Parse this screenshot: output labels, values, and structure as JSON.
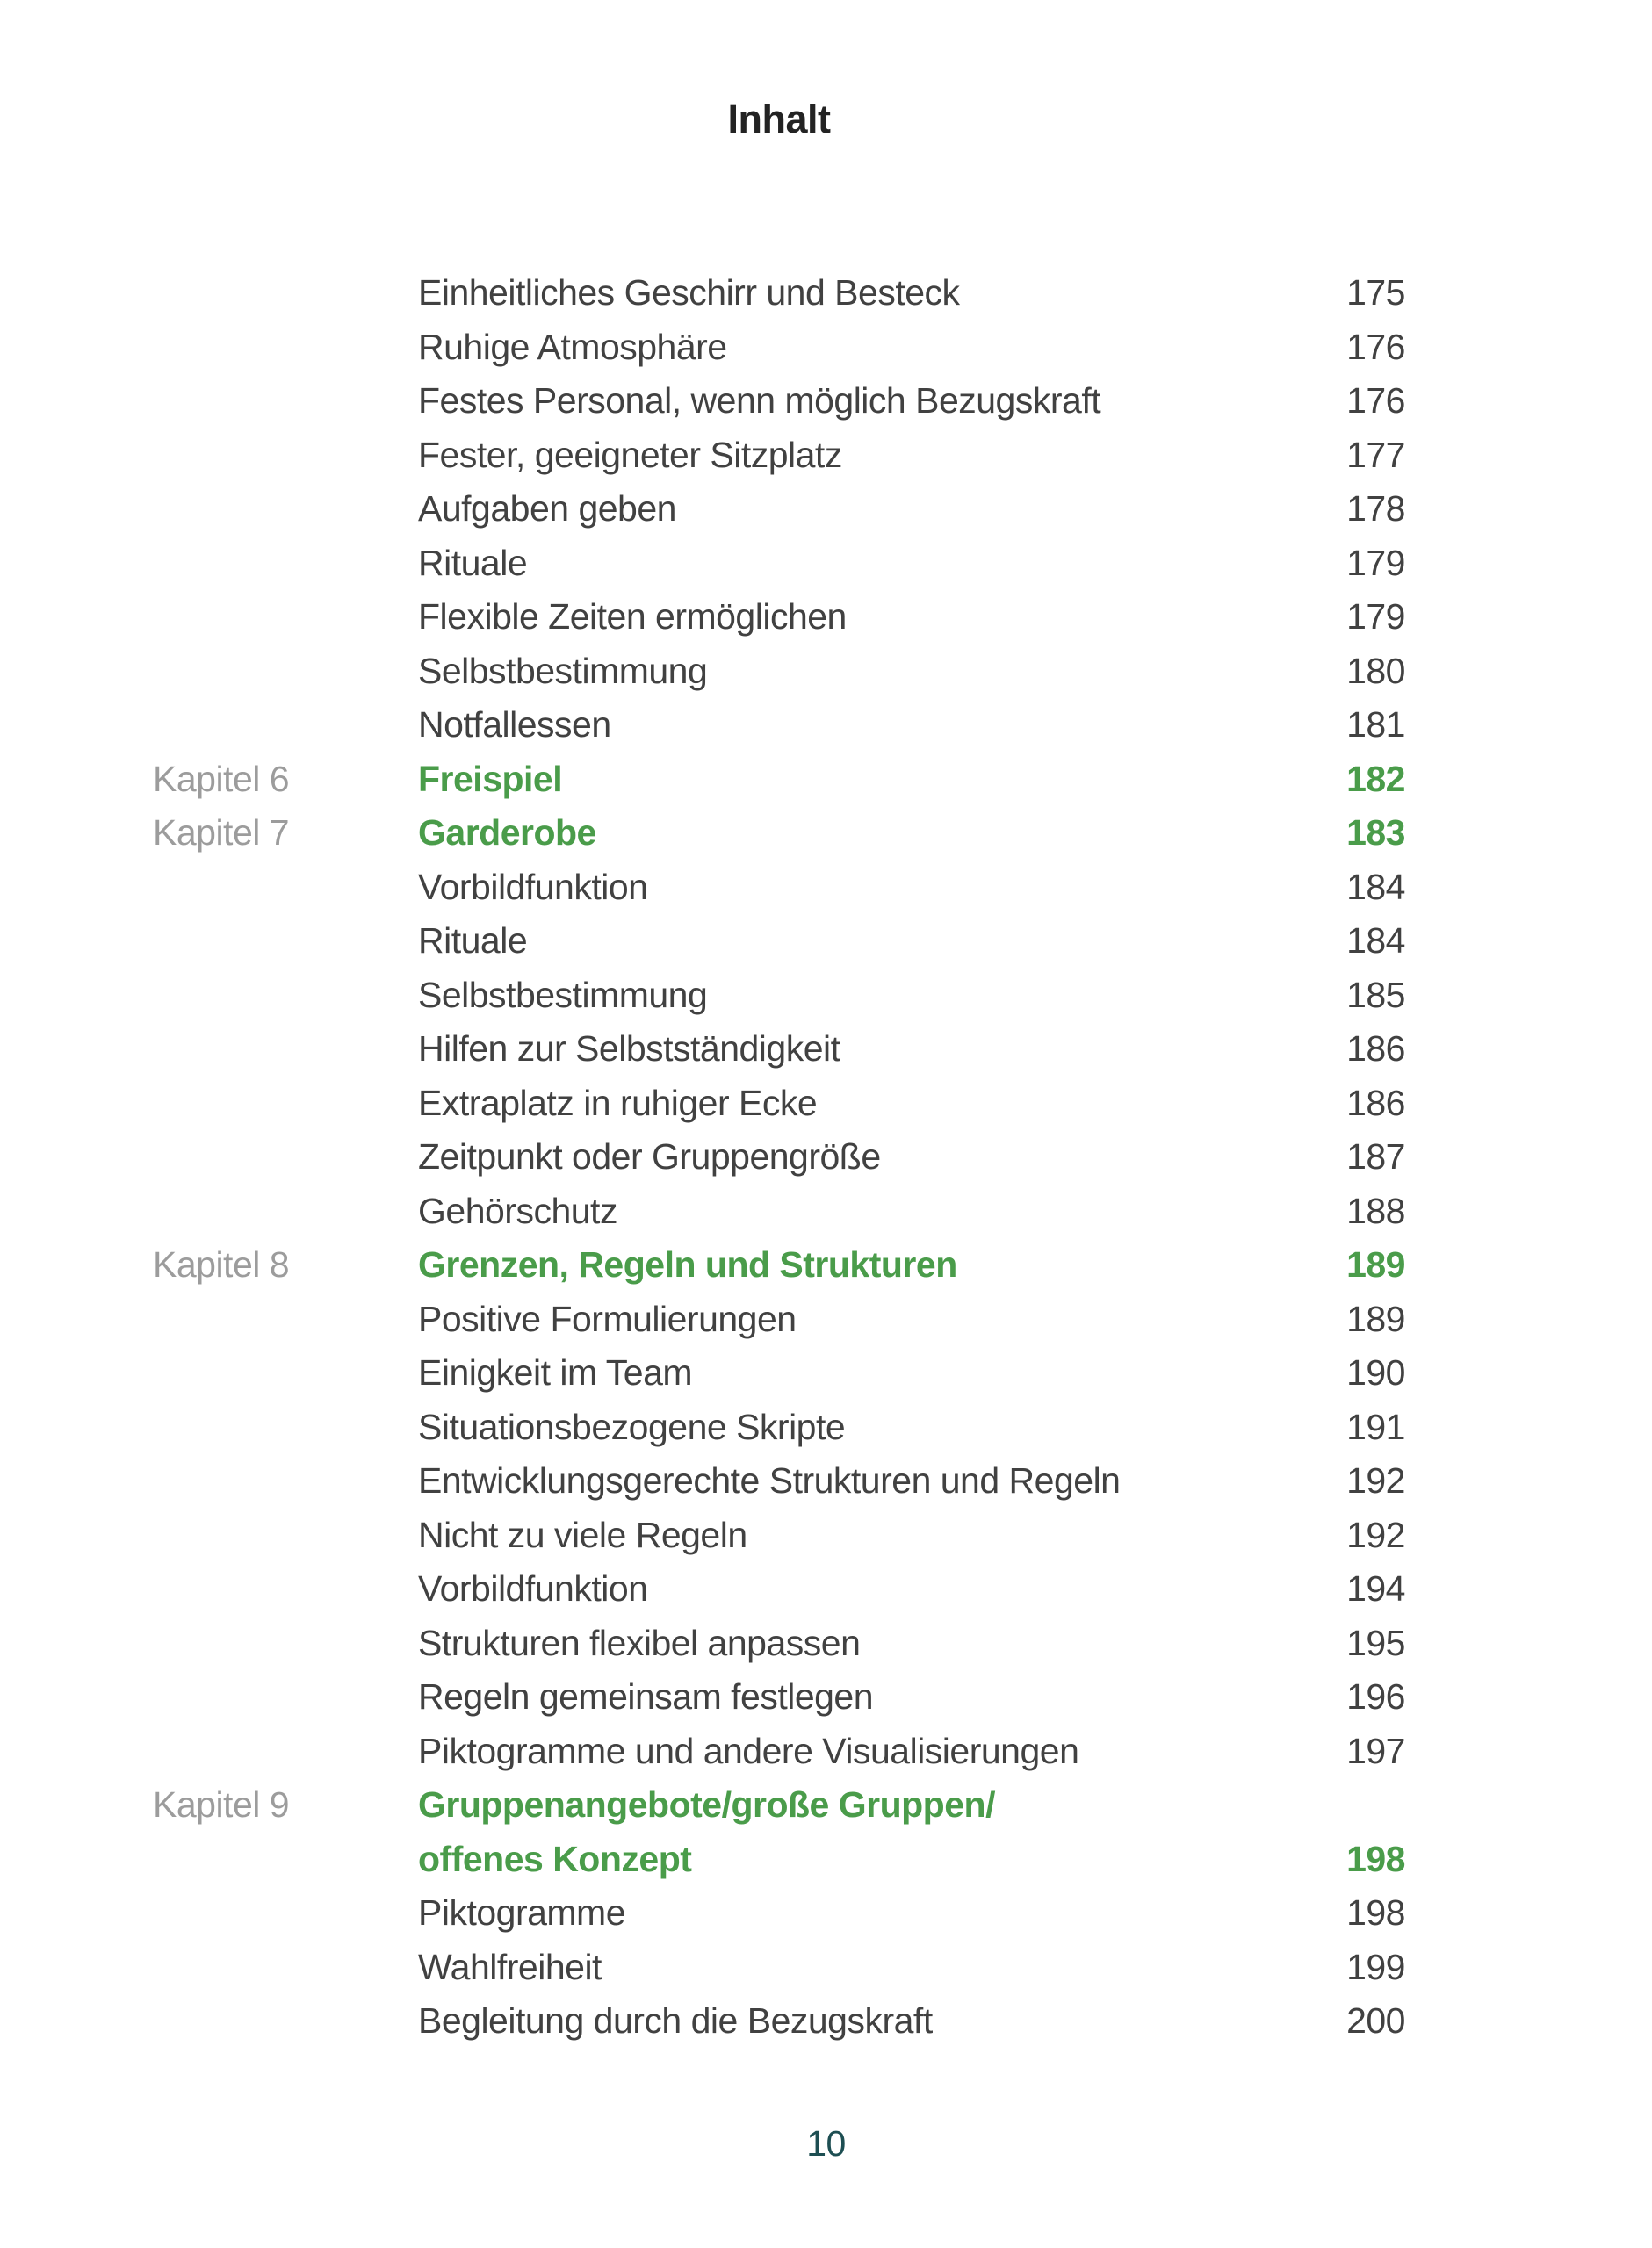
{
  "page": {
    "title": "Inhalt",
    "page_number": "10",
    "colors": {
      "accent_green": "#4a9c4a",
      "body_text": "#414141",
      "chapter_label_gray": "#9c9c9c",
      "heading_text": "#232323",
      "folio_teal": "#1d4e52"
    }
  },
  "toc": {
    "rows": [
      {
        "label": "",
        "text": "Einheitliches Geschirr und Besteck",
        "page": "175",
        "style": "item"
      },
      {
        "label": "",
        "text": "Ruhige Atmosphäre",
        "page": "176",
        "style": "item"
      },
      {
        "label": "",
        "text": "Festes Personal, wenn möglich Bezugskraft",
        "page": "176",
        "style": "item"
      },
      {
        "label": "",
        "text": "Fester, geeigneter Sitzplatz",
        "page": "177",
        "style": "item"
      },
      {
        "label": "",
        "text": "Aufgaben geben",
        "page": "178",
        "style": "item"
      },
      {
        "label": "",
        "text": "Rituale",
        "page": "179",
        "style": "item"
      },
      {
        "label": "",
        "text": "Flexible Zeiten ermöglichen",
        "page": "179",
        "style": "item"
      },
      {
        "label": "",
        "text": "Selbstbestimmung",
        "page": "180",
        "style": "item"
      },
      {
        "label": "",
        "text": "Notfallessen",
        "page": "181",
        "style": "item"
      },
      {
        "label": "Kapitel 6",
        "text": "Freispiel",
        "page": "182",
        "style": "chapter"
      },
      {
        "label": "Kapitel 7",
        "text": "Garderobe",
        "page": "183",
        "style": "chapter"
      },
      {
        "label": "",
        "text": "Vorbildfunktion",
        "page": "184",
        "style": "item"
      },
      {
        "label": "",
        "text": "Rituale",
        "page": "184",
        "style": "item"
      },
      {
        "label": "",
        "text": "Selbstbestimmung",
        "page": "185",
        "style": "item"
      },
      {
        "label": "",
        "text": "Hilfen zur Selbstständigkeit",
        "page": "186",
        "style": "item"
      },
      {
        "label": "",
        "text": "Extraplatz in ruhiger Ecke",
        "page": "186",
        "style": "item"
      },
      {
        "label": "",
        "text": "Zeitpunkt oder Gruppengröße",
        "page": "187",
        "style": "item"
      },
      {
        "label": "",
        "text": "Gehörschutz",
        "page": "188",
        "style": "item"
      },
      {
        "label": "Kapitel 8",
        "text": "Grenzen, Regeln und Strukturen",
        "page": "189",
        "style": "chapter"
      },
      {
        "label": "",
        "text": "Positive Formulierungen",
        "page": "189",
        "style": "item"
      },
      {
        "label": "",
        "text": "Einigkeit im Team",
        "page": "190",
        "style": "item"
      },
      {
        "label": "",
        "text": "Situationsbezogene Skripte",
        "page": "191",
        "style": "item"
      },
      {
        "label": "",
        "text": "Entwicklungsgerechte Strukturen und Regeln",
        "page": "192",
        "style": "item"
      },
      {
        "label": "",
        "text": "Nicht zu viele Regeln",
        "page": "192",
        "style": "item"
      },
      {
        "label": "",
        "text": "Vorbildfunktion",
        "page": "194",
        "style": "item"
      },
      {
        "label": "",
        "text": "Strukturen flexibel anpassen",
        "page": "195",
        "style": "item"
      },
      {
        "label": "",
        "text": "Regeln gemeinsam festlegen",
        "page": "196",
        "style": "item"
      },
      {
        "label": "",
        "text": "Piktogramme und andere Visualisierungen",
        "page": "197",
        "style": "item"
      },
      {
        "label": "Kapitel 9",
        "text": "Gruppenangebote/große Gruppen/",
        "page": "",
        "style": "chapter"
      },
      {
        "label": "",
        "text": "offenes Konzept",
        "page": "198",
        "style": "chapter"
      },
      {
        "label": "",
        "text": "Piktogramme",
        "page": "198",
        "style": "item"
      },
      {
        "label": "",
        "text": "Wahlfreiheit",
        "page": "199",
        "style": "item"
      },
      {
        "label": "",
        "text": "Begleitung durch die Bezugskraft",
        "page": "200",
        "style": "item"
      }
    ]
  }
}
